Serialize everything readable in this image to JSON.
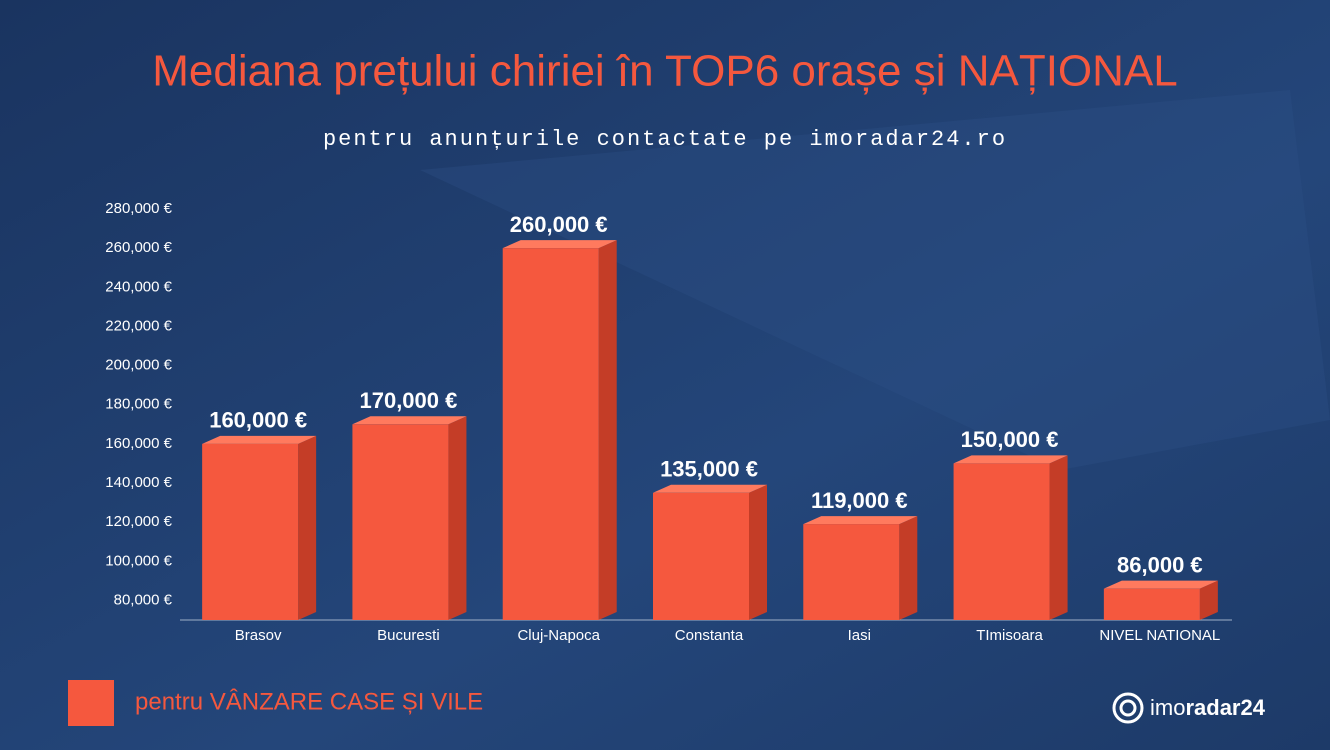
{
  "chart_data": {
    "type": "bar3d",
    "title": "Mediana prețului chiriei în TOP6 orașe și NAȚIONAL",
    "subtitle": "pentru anunțurile contactate pe imoradar24.ro",
    "categories": [
      "Brasov",
      "Bucuresti",
      "Cluj-Napoca",
      "Constanta",
      "Iasi",
      "TImisoara",
      "NIVEL NATIONAL"
    ],
    "series": [
      {
        "name": "pentru VÂNZARE CASE ȘI VILE",
        "color": "#f5583e",
        "values": [
          160000,
          170000,
          260000,
          135000,
          119000,
          150000,
          86000
        ],
        "value_labels": [
          "160,000 €",
          "170,000 €",
          "260,000 €",
          "135,000 €",
          "119,000 €",
          "150,000 €",
          "86,000 €"
        ]
      }
    ],
    "ylim": [
      70000,
      280000
    ],
    "yticks": [
      {
        "value": 80000,
        "label": "80,000 €"
      },
      {
        "value": 100000,
        "label": "100,000 €"
      },
      {
        "value": 120000,
        "label": "120,000 €"
      },
      {
        "value": 140000,
        "label": "140,000 €"
      },
      {
        "value": 160000,
        "label": "160,000 €"
      },
      {
        "value": 180000,
        "label": "180,000 €"
      },
      {
        "value": 200000,
        "label": "200,000 €"
      },
      {
        "value": 220000,
        "label": "220,000 €"
      },
      {
        "value": 240000,
        "label": "240,000 €"
      },
      {
        "value": 260000,
        "label": "260,000 €"
      },
      {
        "value": 280000,
        "label": "280,000 €"
      }
    ],
    "grid": false
  },
  "brand": {
    "light": "imo",
    "bold": "radar24"
  }
}
